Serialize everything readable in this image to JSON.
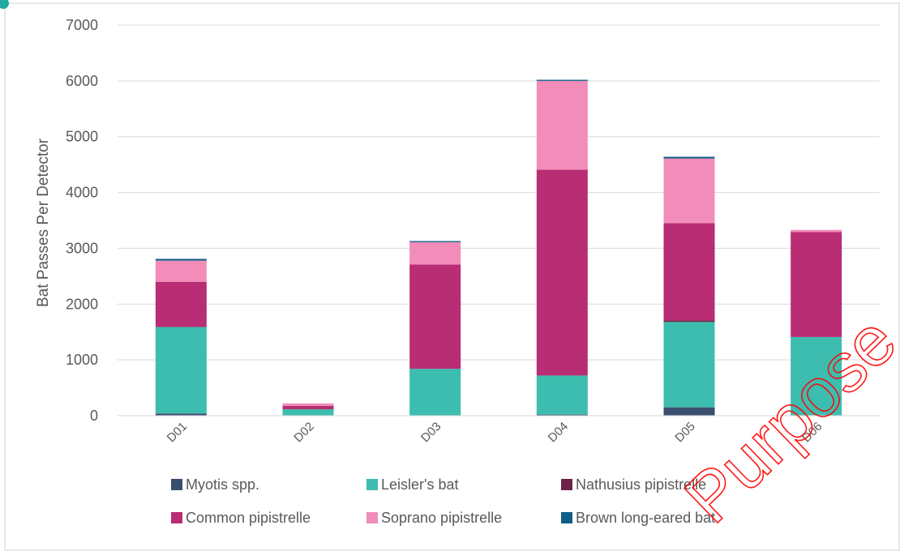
{
  "chart_data": {
    "type": "bar",
    "stacked": true,
    "title": "",
    "xlabel": "",
    "ylabel": "Bat Passes Per Detector",
    "ylim": [
      0,
      7000
    ],
    "yticks": [
      0,
      1000,
      2000,
      3000,
      4000,
      5000,
      6000,
      7000
    ],
    "grid": true,
    "legend_position": "bottom",
    "categories": [
      "D01",
      "D02",
      "D03",
      "D04",
      "D05",
      "D06"
    ],
    "series": [
      {
        "name": "Myotis spp.",
        "color": "#3a4f6e",
        "values": [
          40,
          5,
          0,
          20,
          150,
          0
        ]
      },
      {
        "name": "Leisler's bat",
        "color": "#3dbdaf",
        "values": [
          1550,
          110,
          840,
          700,
          1530,
          1410
        ]
      },
      {
        "name": "Nathusius pipistrelle",
        "color": "#6b2447",
        "values": [
          0,
          0,
          0,
          0,
          30,
          0
        ]
      },
      {
        "name": "Common pipistrelle",
        "color": "#b82d74",
        "values": [
          810,
          60,
          1870,
          3690,
          1740,
          1880
        ]
      },
      {
        "name": "Soprano pipistrelle",
        "color": "#f28cb9",
        "values": [
          380,
          45,
          400,
          1590,
          1160,
          40
        ]
      },
      {
        "name": "Brown long-eared bat",
        "color": "#0e5e88",
        "values": [
          30,
          0,
          20,
          20,
          30,
          0
        ]
      }
    ]
  },
  "watermark": {
    "text": "Purpose",
    "color": "#ff0000"
  }
}
